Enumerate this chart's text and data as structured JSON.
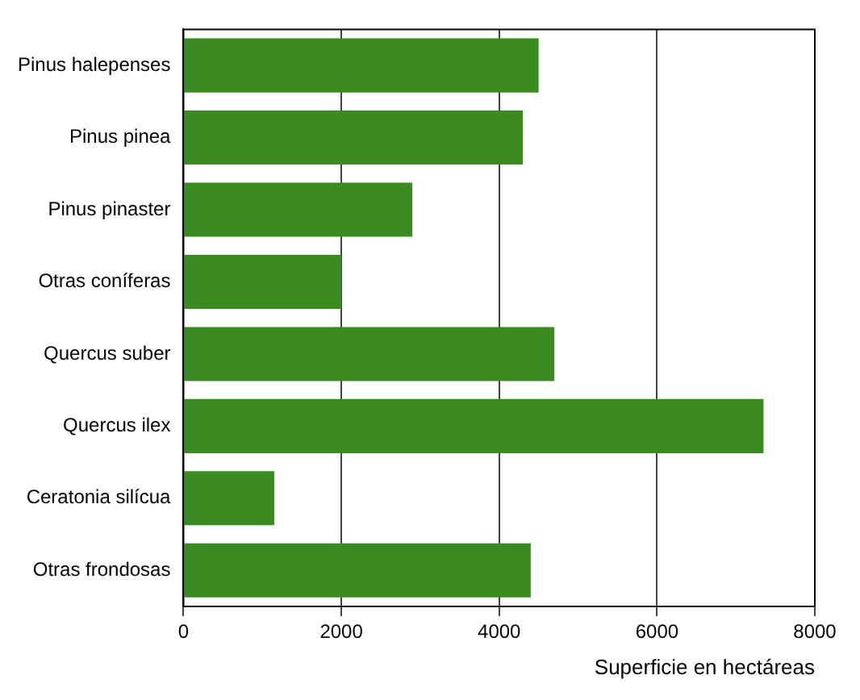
{
  "chart_data": {
    "type": "bar",
    "orientation": "horizontal",
    "xlabel": "Superficie en hectáreas",
    "categories": [
      "Pinus halepenses",
      "Pinus pinea",
      "Pinus pinaster",
      "Otras coníferas",
      "Quercus suber",
      "Quercus ilex",
      "Ceratonia silícua",
      "Otras frondosas"
    ],
    "values": [
      4500,
      4300,
      2900,
      2000,
      4700,
      7350,
      1150,
      4400
    ],
    "color": "#3a8c22",
    "xlim": [
      0,
      8000
    ],
    "xticks": [
      0,
      2000,
      4000,
      6000,
      8000
    ],
    "grid": "x",
    "legend": false
  }
}
